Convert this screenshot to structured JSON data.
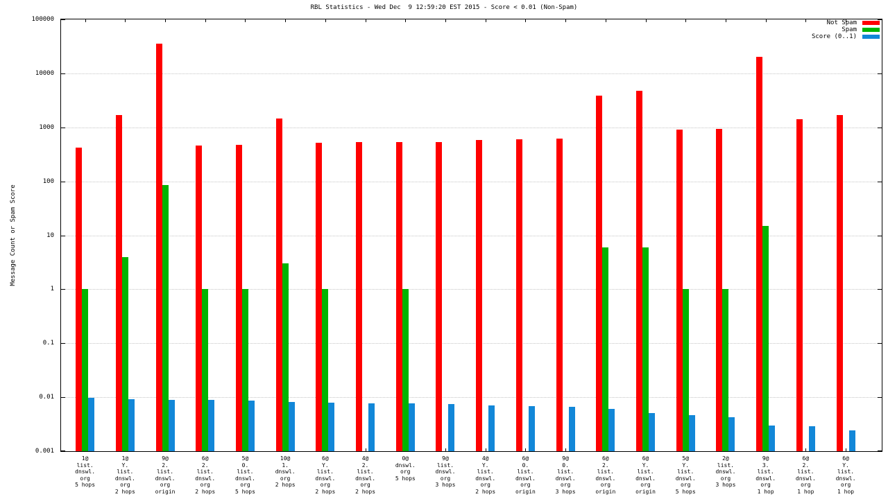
{
  "chart_data": {
    "type": "bar",
    "title": "RBL Statistics - Wed Dec  9 12:59:20 EST 2015 - Score < 0.01 (Non-Spam)",
    "ylabel": "Message Count or Spam Score",
    "xlabel": "",
    "y_scale": "log",
    "ylim": [
      0.001,
      100000
    ],
    "xlim": [
      -0.6,
      19.9
    ],
    "y_ticks": [
      "100000",
      "10000",
      "1000",
      "100",
      "10",
      "1",
      "0.1",
      "0.01",
      "0.001"
    ],
    "grid": true,
    "legend_position": "top-right",
    "categories": [
      [
        "1@",
        "list.",
        "dnswl.",
        "org",
        "5 hops"
      ],
      [
        "1@",
        "Y.",
        "list.",
        "dnswl.",
        "org",
        "2 hops"
      ],
      [
        "9@",
        "2.",
        "list.",
        "dnswl.",
        "org",
        "origin"
      ],
      [
        "6@",
        "2.",
        "list.",
        "dnswl.",
        "org",
        "2 hops"
      ],
      [
        "5@",
        "0.",
        "list.",
        "dnswl.",
        "org",
        "5 hops"
      ],
      [
        "10@",
        "1.",
        "dnswl.",
        "org",
        "2 hops"
      ],
      [
        "6@",
        "Y.",
        "list.",
        "dnswl.",
        "org",
        "2 hops"
      ],
      [
        "4@",
        "2.",
        "list.",
        "dnswl.",
        "org",
        "2 hops"
      ],
      [
        "0@",
        "dnswl.",
        "org",
        "5 hops"
      ],
      [
        "9@",
        "list.",
        "dnswl.",
        "org",
        "3 hops"
      ],
      [
        "4@",
        "Y.",
        "list.",
        "dnswl.",
        "org",
        "2 hops"
      ],
      [
        "6@",
        "0.",
        "list.",
        "dnswl.",
        "org",
        "origin"
      ],
      [
        "9@",
        "0.",
        "list.",
        "dnswl.",
        "org",
        "3 hops"
      ],
      [
        "6@",
        "2.",
        "list.",
        "dnswl.",
        "org",
        "origin"
      ],
      [
        "6@",
        "Y.",
        "list.",
        "dnswl.",
        "org",
        "origin"
      ],
      [
        "5@",
        "Y.",
        "list.",
        "dnswl.",
        "org",
        "5 hops"
      ],
      [
        "2@",
        "list.",
        "dnswl.",
        "org",
        "3 hops"
      ],
      [
        "9@",
        "3.",
        "list.",
        "dnswl.",
        "org",
        "1 hop"
      ],
      [
        "6@",
        "2.",
        "list.",
        "dnswl.",
        "org",
        "1 hop"
      ],
      [
        "6@",
        "Y.",
        "list.",
        "dnswl.",
        "org",
        "1 hop"
      ]
    ],
    "series": [
      {
        "name": "Not Spam",
        "color": "#ff0000",
        "values": [
          420,
          1700,
          36000,
          460,
          470,
          1450,
          520,
          530,
          530,
          540,
          580,
          600,
          620,
          3900,
          4700,
          900,
          950,
          20000,
          1400,
          1700
        ]
      },
      {
        "name": "Spam",
        "color": "#00b400",
        "values": [
          1,
          4,
          85,
          1,
          1,
          3,
          1,
          null,
          1,
          null,
          null,
          null,
          null,
          6,
          6,
          1,
          1,
          15,
          null,
          null
        ]
      },
      {
        "name": "Score (0..1)",
        "color": "#1287d8",
        "values": [
          0.0098,
          0.0092,
          0.009,
          0.0088,
          0.0086,
          0.0082,
          0.0079,
          0.0077,
          0.0076,
          0.0075,
          0.0071,
          0.0068,
          0.0066,
          0.0061,
          0.0051,
          0.0046,
          0.0042,
          0.003,
          0.0029,
          0.0024
        ]
      }
    ]
  }
}
